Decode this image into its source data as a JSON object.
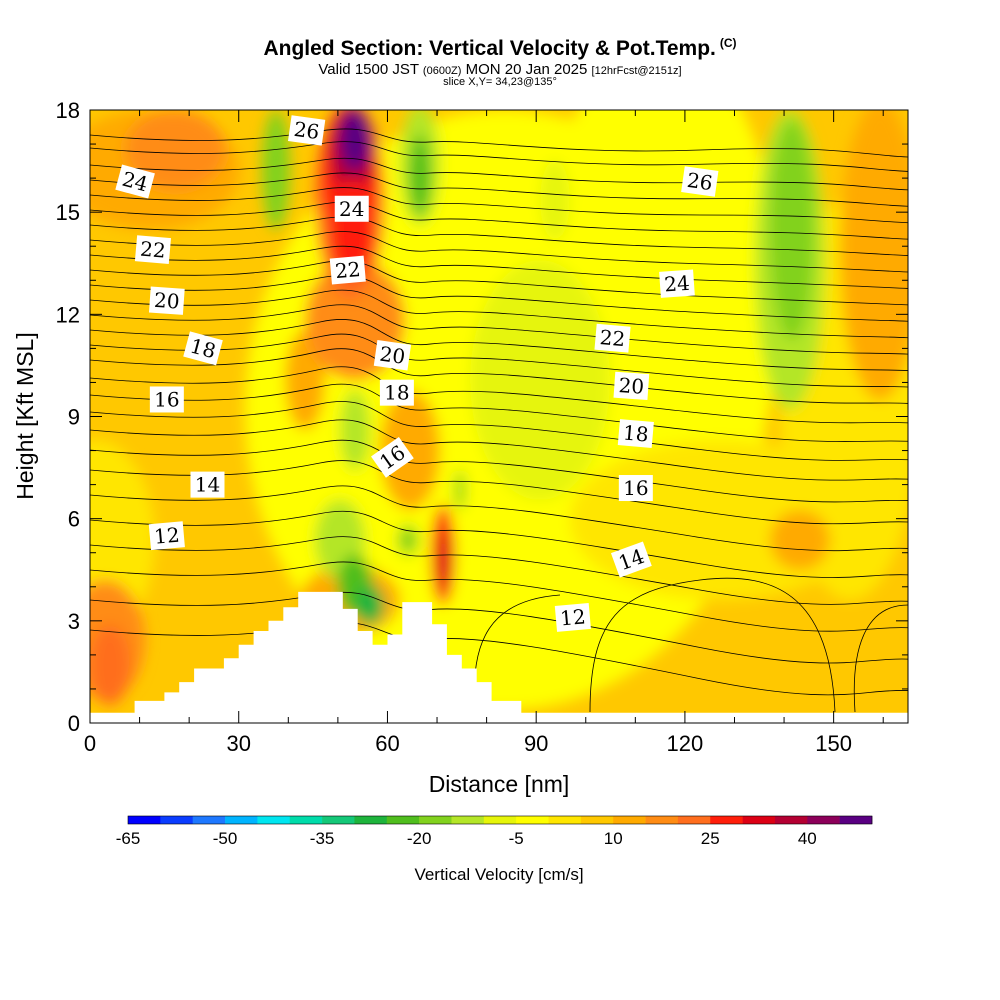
{
  "header": {
    "title": "Angled Section: Vertical Velocity & Pot.Temp.",
    "title_unit": "(C)",
    "valid_prefix": "Valid 1500 JST",
    "valid_utc": "(0600Z)",
    "valid_date": "MON 20 Jan 2025",
    "forecast": "[12hrFcst@2151z]",
    "slice": "slice X,Y= 34,23@135°"
  },
  "chart_data": {
    "type": "heatmap",
    "xlabel": "Distance [nm]",
    "ylabel": "Height [Kft MSL]",
    "xlim": [
      0,
      165
    ],
    "ylim": [
      0,
      18
    ],
    "x_ticks": [
      0,
      30,
      60,
      90,
      120,
      150
    ],
    "y_ticks": [
      0,
      3,
      6,
      9,
      12,
      15,
      18
    ],
    "fill_variable": "Vertical Velocity [cm/s]",
    "colorbar": {
      "label": "Vertical Velocity [cm/s]",
      "levels": [
        -65,
        -60,
        -55,
        -50,
        -45,
        -40,
        -35,
        -30,
        -25,
        -20,
        -15,
        -10,
        -5,
        0,
        5,
        10,
        15,
        20,
        25,
        30,
        35,
        40,
        45,
        50
      ],
      "tick_labels": [
        "-65",
        "-50",
        "-35",
        "-20",
        "-5",
        "10",
        "25",
        "40"
      ],
      "colors": [
        "#0000ff",
        "#0a3cff",
        "#1e78ff",
        "#00b4ff",
        "#00e6f0",
        "#00dcaa",
        "#14c878",
        "#1eb43c",
        "#50be1e",
        "#82d21e",
        "#b4e628",
        "#e6f50a",
        "#ffff00",
        "#ffe600",
        "#ffc800",
        "#ffaa00",
        "#ff8c14",
        "#ff6e1e",
        "#ff1e0a",
        "#dc0014",
        "#b40032",
        "#8c005a",
        "#5a0082"
      ]
    },
    "contour_variable": "Potential Temperature (C)",
    "contour_levels": [
      12,
      14,
      16,
      18,
      20,
      22,
      24,
      26
    ],
    "contour_labels": [
      {
        "text": "26",
        "x": 43.7,
        "y": 17.4
      },
      {
        "text": "24",
        "x": 9.1,
        "y": 15.9
      },
      {
        "text": "24",
        "x": 52.8,
        "y": 15.1
      },
      {
        "text": "26",
        "x": 123.0,
        "y": 15.9
      },
      {
        "text": "22",
        "x": 12.7,
        "y": 13.9
      },
      {
        "text": "22",
        "x": 52.0,
        "y": 13.3
      },
      {
        "text": "24",
        "x": 118.4,
        "y": 12.9
      },
      {
        "text": "20",
        "x": 15.5,
        "y": 12.4
      },
      {
        "text": "22",
        "x": 105.4,
        "y": 11.3
      },
      {
        "text": "18",
        "x": 22.8,
        "y": 11.0
      },
      {
        "text": "20",
        "x": 61.0,
        "y": 10.8
      },
      {
        "text": "20",
        "x": 109.2,
        "y": 9.9
      },
      {
        "text": "16",
        "x": 15.5,
        "y": 9.5
      },
      {
        "text": "18",
        "x": 61.9,
        "y": 9.7
      },
      {
        "text": "18",
        "x": 110.1,
        "y": 8.5
      },
      {
        "text": "16",
        "x": 61.0,
        "y": 7.8
      },
      {
        "text": "14",
        "x": 23.7,
        "y": 7.0
      },
      {
        "text": "16",
        "x": 110.1,
        "y": 6.9
      },
      {
        "text": "12",
        "x": 15.5,
        "y": 5.5
      },
      {
        "text": "14",
        "x": 109.2,
        "y": 4.8
      },
      {
        "text": "12",
        "x": 97.4,
        "y": 3.1
      }
    ],
    "terrain_top_profile": [
      [
        0,
        0.3
      ],
      [
        9,
        0.3
      ],
      [
        9,
        0.65
      ],
      [
        15,
        0.65
      ],
      [
        15,
        0.9
      ],
      [
        18,
        0.9
      ],
      [
        18,
        1.2
      ],
      [
        21,
        1.2
      ],
      [
        21,
        1.6
      ],
      [
        27,
        1.6
      ],
      [
        27,
        1.9
      ],
      [
        30,
        1.9
      ],
      [
        30,
        2.3
      ],
      [
        33,
        2.3
      ],
      [
        33,
        2.7
      ],
      [
        36,
        2.7
      ],
      [
        36,
        3.0
      ],
      [
        39,
        3.0
      ],
      [
        39,
        3.4
      ],
      [
        42,
        3.4
      ],
      [
        42,
        3.85
      ],
      [
        51,
        3.85
      ],
      [
        51,
        3.35
      ],
      [
        54,
        3.35
      ],
      [
        54,
        2.7
      ],
      [
        57,
        2.7
      ],
      [
        57,
        2.3
      ],
      [
        60,
        2.3
      ],
      [
        60,
        2.6
      ],
      [
        63,
        2.6
      ],
      [
        63,
        3.55
      ],
      [
        69,
        3.55
      ],
      [
        69,
        2.9
      ],
      [
        72,
        2.9
      ],
      [
        72,
        2.0
      ],
      [
        75,
        2.0
      ],
      [
        75,
        1.6
      ],
      [
        78,
        1.6
      ],
      [
        78,
        1.2
      ],
      [
        81,
        1.2
      ],
      [
        81,
        0.65
      ],
      [
        87,
        0.65
      ],
      [
        87,
        0.3
      ],
      [
        165,
        0.3
      ]
    ]
  }
}
